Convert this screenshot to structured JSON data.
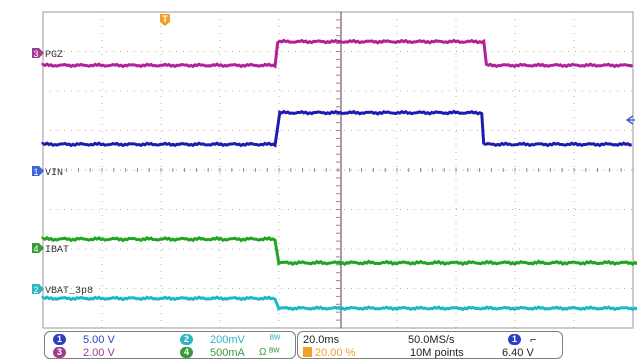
{
  "screen": {
    "bg": "#ffffff",
    "grid_color": "#b0b0b0",
    "frame_color": "#9a9a9a",
    "cursor_color": "#6a2a55"
  },
  "trigger": {
    "marker": "T",
    "level_position_pct": 23,
    "color": "#f2a02a"
  },
  "channels": [
    {
      "id": "1",
      "label": "VIN",
      "color": "#1c1cb0",
      "marker_color": "#3f63d8"
    },
    {
      "id": "2",
      "label": "VBAT_3p8",
      "color": "#1ab8c8",
      "marker_color": "#2fb5c4"
    },
    {
      "id": "3",
      "label": "PGZ",
      "color": "#b0219a",
      "marker_color": "#a03b92"
    },
    {
      "id": "4",
      "label": "IBAT",
      "color": "#1ea71e",
      "marker_color": "#3a9a3a"
    }
  ],
  "ref_arrow_color": "#3f63d8",
  "waveforms": {
    "pgz": {
      "low_div": 1.35,
      "high_div": 0.75,
      "t_rise_div": 4.2,
      "t_fall_div": 7.95
    },
    "vin": {
      "low_div": 3.35,
      "high_div": 2.55,
      "t_rise_div": 4.2,
      "t_fall_div": 7.9
    },
    "ibat": {
      "high_div": 5.75,
      "low_div": 6.35,
      "t_drop_div": 4.2,
      "t_rise_div": 11.1
    },
    "vbat": {
      "high_div": 7.25,
      "low_div": 7.5,
      "t_drop_div": 4.2,
      "t_rise_div": 11.1
    }
  },
  "readouts": {
    "ch1_scale": "5.00 V",
    "ch3_scale": "2.00 V",
    "ch2_scale": "200mV",
    "ch4_scale": "500mA",
    "bw_limit_2": "ᴮᵂ",
    "bw_limit_4": "Ω ᴮᵂ",
    "timebase": "20.0ms",
    "trigger_pos": "20.00 %",
    "sample_rate": "50.0MS/s",
    "record_length": "10M points",
    "trig_source": "1",
    "trig_slope": "⌐",
    "trig_level": "6.40 V"
  }
}
